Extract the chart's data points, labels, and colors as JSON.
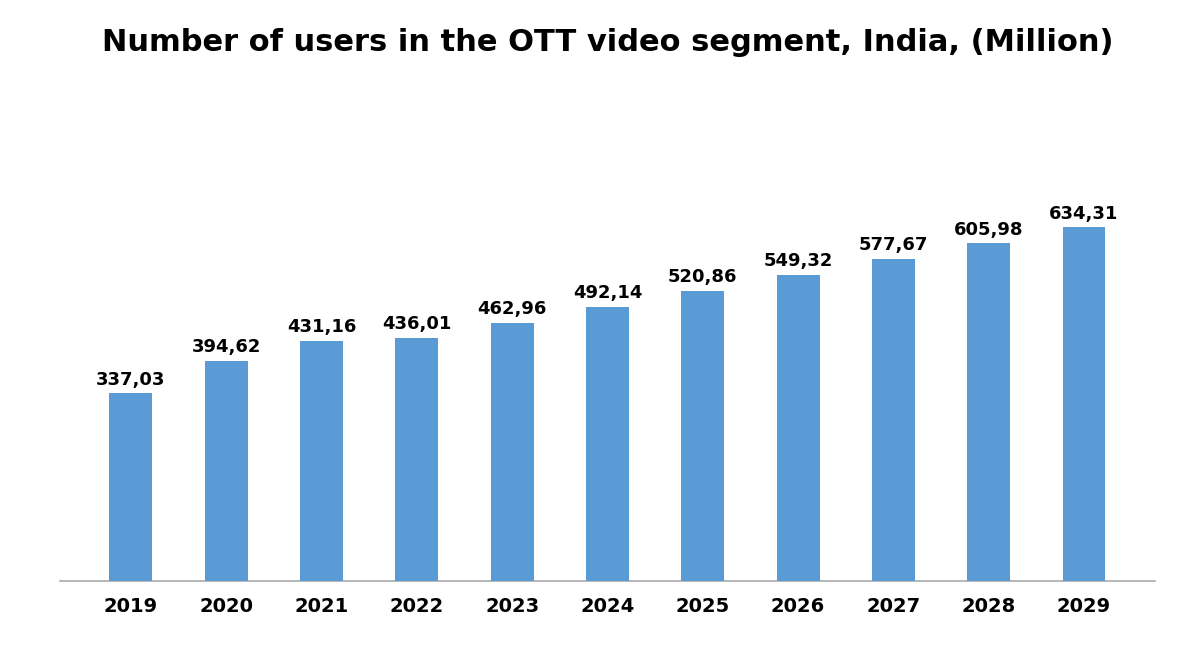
{
  "title": "Number of users in the OTT video segment, India, (Million)",
  "categories": [
    "2019",
    "2020",
    "2021",
    "2022",
    "2023",
    "2024",
    "2025",
    "2026",
    "2027",
    "2028",
    "2029"
  ],
  "values": [
    337.03,
    394.62,
    431.16,
    436.01,
    462.96,
    492.14,
    520.86,
    549.32,
    577.67,
    605.98,
    634.31
  ],
  "labels": [
    "337,03",
    "394,62",
    "431,16",
    "436,01",
    "462,96",
    "492,14",
    "520,86",
    "549,32",
    "577,67",
    "605,98",
    "634,31"
  ],
  "bar_color": "#5b9bd5",
  "background_color": "#ffffff",
  "title_fontsize": 22,
  "label_fontsize": 13,
  "tick_fontsize": 14,
  "ylim": [
    0,
    900
  ],
  "bar_width": 0.45
}
